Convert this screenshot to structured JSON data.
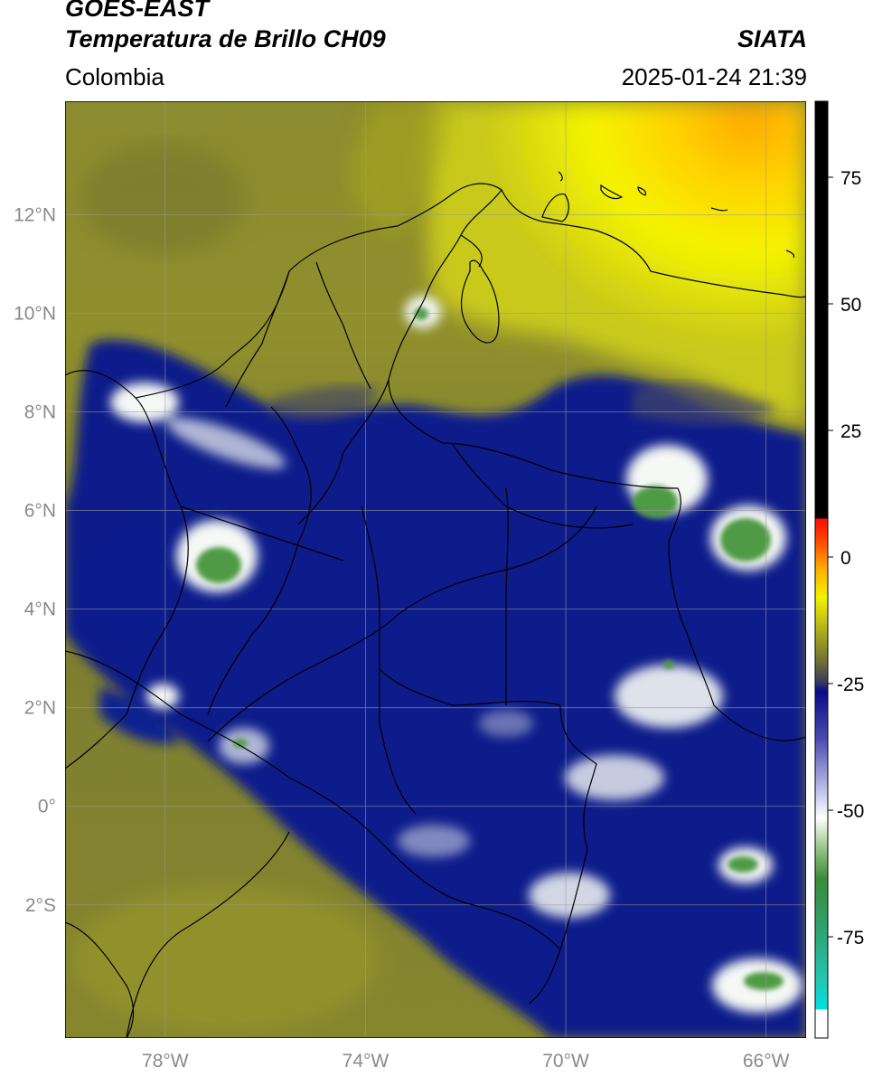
{
  "header": {
    "satellite": "GOES-EAST",
    "product": "Temperatura de Brillo CH09",
    "region": "Colombia",
    "agency": "SIATA",
    "datetime": "2025-01-24 21:39"
  },
  "map": {
    "lon_range": [
      -80,
      -65.2
    ],
    "lat_range": [
      -4.7,
      14.3
    ],
    "lat_ticks": [
      {
        "value": 12,
        "label": "12°N"
      },
      {
        "value": 10,
        "label": "10°N"
      },
      {
        "value": 8,
        "label": "8°N"
      },
      {
        "value": 6,
        "label": "6°N"
      },
      {
        "value": 4,
        "label": "4°N"
      },
      {
        "value": 2,
        "label": "2°N"
      },
      {
        "value": 0,
        "label": "0°"
      },
      {
        "value": -2,
        "label": "2°S"
      }
    ],
    "lon_ticks": [
      {
        "value": -78,
        "label": "78°W"
      },
      {
        "value": -74,
        "label": "74°W"
      },
      {
        "value": -70,
        "label": "70°W"
      },
      {
        "value": -66,
        "label": "66°W"
      }
    ],
    "gridlines": true,
    "colors": {
      "olive": "#8c8c2a",
      "dark_olive": "#6e6e2e",
      "yellow": "#f2f200",
      "orange": "#ffb000",
      "navy": "#0c1a8a",
      "white": "#f5f8f5",
      "green": "#4f9a45"
    }
  },
  "colorbar": {
    "range": [
      -95,
      90
    ],
    "ticks": [
      {
        "value": 75,
        "label": "75"
      },
      {
        "value": 50,
        "label": "50"
      },
      {
        "value": 25,
        "label": "25"
      },
      {
        "value": 0,
        "label": "0"
      },
      {
        "value": -25,
        "label": "-25"
      },
      {
        "value": -50,
        "label": "-50"
      },
      {
        "value": -75,
        "label": "-75"
      }
    ]
  }
}
